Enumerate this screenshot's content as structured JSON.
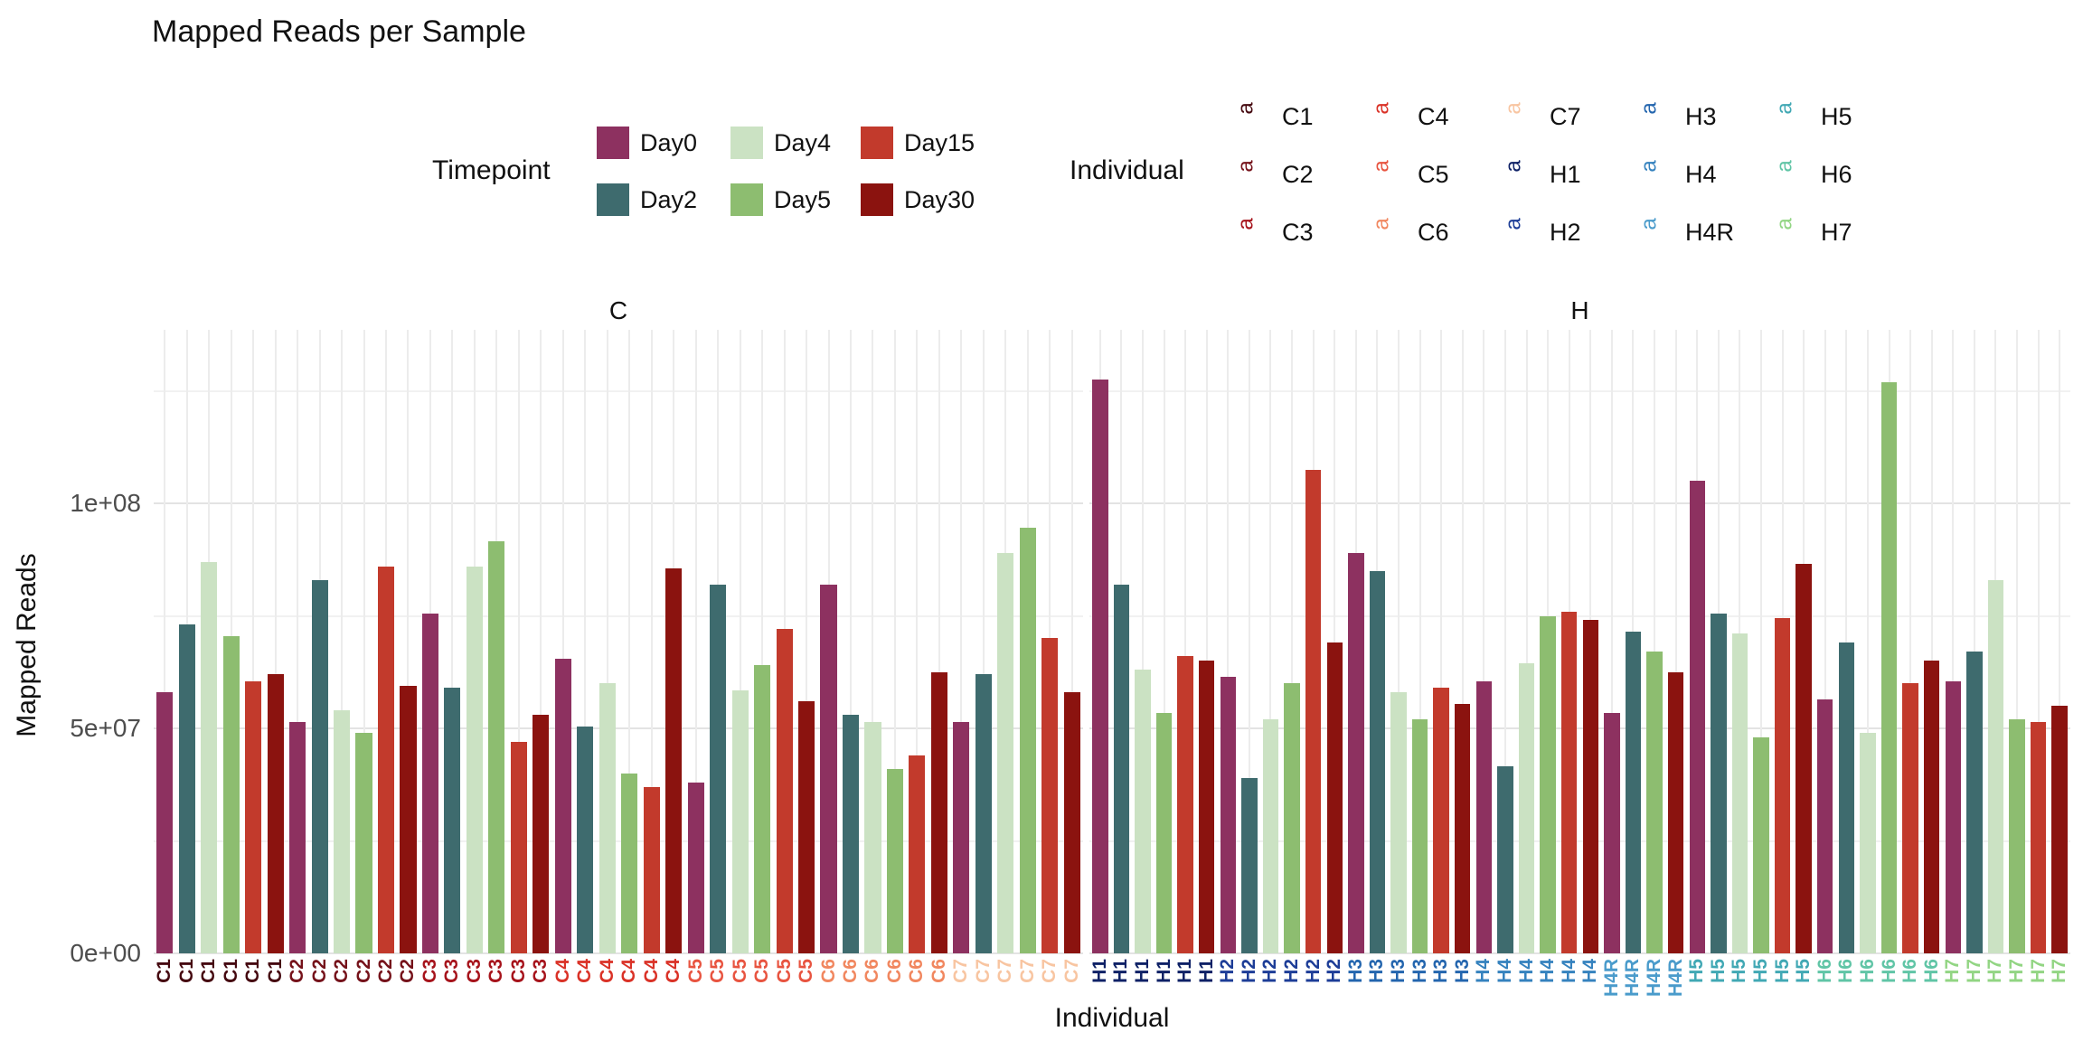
{
  "title": "Mapped Reads per Sample",
  "y_axis": {
    "label": "Mapped Reads",
    "ticks": [
      {
        "label": "0e+00",
        "value": 0
      },
      {
        "label": "5e+07",
        "value": 50000000
      },
      {
        "label": "1e+08",
        "value": 100000000
      }
    ]
  },
  "x_axis": {
    "label": "Individual"
  },
  "legend_timepoint": {
    "title": "Timepoint",
    "items": [
      {
        "label": "Day0",
        "color": "#8D3160"
      },
      {
        "label": "Day2",
        "color": "#3E6B6E"
      },
      {
        "label": "Day4",
        "color": "#CBE2C3"
      },
      {
        "label": "Day5",
        "color": "#8DBD70"
      },
      {
        "label": "Day15",
        "color": "#C23A2C"
      },
      {
        "label": "Day30",
        "color": "#8B130F"
      }
    ]
  },
  "legend_individual": {
    "title": "Individual",
    "items": [
      {
        "label": "C1",
        "color": "#450910"
      },
      {
        "label": "C2",
        "color": "#75121A"
      },
      {
        "label": "C3",
        "color": "#A6131B"
      },
      {
        "label": "C4",
        "color": "#DA3227"
      },
      {
        "label": "C5",
        "color": "#E85440"
      },
      {
        "label": "C6",
        "color": "#F1875F"
      },
      {
        "label": "C7",
        "color": "#F8C5A1"
      },
      {
        "label": "H1",
        "color": "#0E2166"
      },
      {
        "label": "H2",
        "color": "#1D3D97"
      },
      {
        "label": "H3",
        "color": "#2365AE"
      },
      {
        "label": "H4",
        "color": "#3582BE"
      },
      {
        "label": "H4R",
        "color": "#4A9BCB"
      },
      {
        "label": "H5",
        "color": "#41A8B4"
      },
      {
        "label": "H6",
        "color": "#60C5A6"
      },
      {
        "label": "H7",
        "color": "#92D583"
      }
    ]
  },
  "chart_data": {
    "type": "bar",
    "title": "Mapped Reads per Sample",
    "xlabel": "Individual",
    "ylabel": "Mapped Reads",
    "ylim": [
      0,
      135000000
    ],
    "yticks": [
      0,
      50000000,
      100000000
    ],
    "grid": "on",
    "legend_position": "top",
    "timepoint_order": [
      "Day0",
      "Day2",
      "Day4",
      "Day5",
      "Day15",
      "Day30"
    ],
    "facets": [
      {
        "name": "C",
        "groups": [
          {
            "individual": "C1",
            "samples": [
              {
                "timepoint": "Day0",
                "value": 58000000
              },
              {
                "timepoint": "Day2",
                "value": 73000000
              },
              {
                "timepoint": "Day4",
                "value": 87000000
              },
              {
                "timepoint": "Day5",
                "value": 70500000
              },
              {
                "timepoint": "Day15",
                "value": 60500000
              },
              {
                "timepoint": "Day30",
                "value": 62000000
              }
            ]
          },
          {
            "individual": "C2",
            "samples": [
              {
                "timepoint": "Day0",
                "value": 51500000
              },
              {
                "timepoint": "Day2",
                "value": 83000000
              },
              {
                "timepoint": "Day4",
                "value": 54000000
              },
              {
                "timepoint": "Day5",
                "value": 49000000
              },
              {
                "timepoint": "Day15",
                "value": 86000000
              },
              {
                "timepoint": "Day30",
                "value": 59500000
              }
            ]
          },
          {
            "individual": "C3",
            "samples": [
              {
                "timepoint": "Day0",
                "value": 75500000
              },
              {
                "timepoint": "Day2",
                "value": 59000000
              },
              {
                "timepoint": "Day4",
                "value": 86000000
              },
              {
                "timepoint": "Day5",
                "value": 91500000
              },
              {
                "timepoint": "Day15",
                "value": 47000000
              },
              {
                "timepoint": "Day30",
                "value": 53000000
              }
            ]
          },
          {
            "individual": "C4",
            "samples": [
              {
                "timepoint": "Day0",
                "value": 65500000
              },
              {
                "timepoint": "Day2",
                "value": 50500000
              },
              {
                "timepoint": "Day4",
                "value": 60000000
              },
              {
                "timepoint": "Day5",
                "value": 40000000
              },
              {
                "timepoint": "Day15",
                "value": 37000000
              },
              {
                "timepoint": "Day30",
                "value": 85500000
              }
            ]
          },
          {
            "individual": "C5",
            "samples": [
              {
                "timepoint": "Day0",
                "value": 38000000
              },
              {
                "timepoint": "Day2",
                "value": 82000000
              },
              {
                "timepoint": "Day4",
                "value": 58500000
              },
              {
                "timepoint": "Day5",
                "value": 64000000
              },
              {
                "timepoint": "Day15",
                "value": 72000000
              },
              {
                "timepoint": "Day30",
                "value": 56000000
              }
            ]
          },
          {
            "individual": "C6",
            "samples": [
              {
                "timepoint": "Day0",
                "value": 82000000
              },
              {
                "timepoint": "Day2",
                "value": 53000000
              },
              {
                "timepoint": "Day4",
                "value": 51500000
              },
              {
                "timepoint": "Day5",
                "value": 41000000
              },
              {
                "timepoint": "Day15",
                "value": 44000000
              },
              {
                "timepoint": "Day30",
                "value": 62500000
              }
            ]
          },
          {
            "individual": "C7",
            "samples": [
              {
                "timepoint": "Day0",
                "value": 51500000
              },
              {
                "timepoint": "Day2",
                "value": 62000000
              },
              {
                "timepoint": "Day4",
                "value": 89000000
              },
              {
                "timepoint": "Day5",
                "value": 94500000
              },
              {
                "timepoint": "Day15",
                "value": 70000000
              },
              {
                "timepoint": "Day30",
                "value": 58000000
              }
            ]
          }
        ]
      },
      {
        "name": "H",
        "groups": [
          {
            "individual": "H1",
            "samples": [
              {
                "timepoint": "Day0",
                "value": 127500000
              },
              {
                "timepoint": "Day2",
                "value": 82000000
              },
              {
                "timepoint": "Day4",
                "value": 63000000
              },
              {
                "timepoint": "Day5",
                "value": 53500000
              },
              {
                "timepoint": "Day15",
                "value": 66000000
              },
              {
                "timepoint": "Day30",
                "value": 65000000
              }
            ]
          },
          {
            "individual": "H2",
            "samples": [
              {
                "timepoint": "Day0",
                "value": 61500000
              },
              {
                "timepoint": "Day2",
                "value": 39000000
              },
              {
                "timepoint": "Day4",
                "value": 52000000
              },
              {
                "timepoint": "Day5",
                "value": 60000000
              },
              {
                "timepoint": "Day15",
                "value": 107500000
              },
              {
                "timepoint": "Day30",
                "value": 69000000
              }
            ]
          },
          {
            "individual": "H3",
            "samples": [
              {
                "timepoint": "Day0",
                "value": 89000000
              },
              {
                "timepoint": "Day2",
                "value": 85000000
              },
              {
                "timepoint": "Day4",
                "value": 58000000
              },
              {
                "timepoint": "Day5",
                "value": 52000000
              },
              {
                "timepoint": "Day15",
                "value": 59000000
              },
              {
                "timepoint": "Day30",
                "value": 55500000
              }
            ]
          },
          {
            "individual": "H4",
            "samples": [
              {
                "timepoint": "Day0",
                "value": 60500000
              },
              {
                "timepoint": "Day2",
                "value": 41500000
              },
              {
                "timepoint": "Day4",
                "value": 64500000
              },
              {
                "timepoint": "Day5",
                "value": 75000000
              },
              {
                "timepoint": "Day15",
                "value": 76000000
              },
              {
                "timepoint": "Day30",
                "value": 74000000
              }
            ]
          },
          {
            "individual": "H4R",
            "samples": [
              {
                "timepoint": "Day0",
                "value": 53500000
              },
              {
                "timepoint": "Day2",
                "value": 71500000
              },
              {
                "timepoint": "Day5",
                "value": 67000000
              },
              {
                "timepoint": "Day30",
                "value": 62500000
              }
            ]
          },
          {
            "individual": "H5",
            "samples": [
              {
                "timepoint": "Day0",
                "value": 105000000
              },
              {
                "timepoint": "Day2",
                "value": 75500000
              },
              {
                "timepoint": "Day4",
                "value": 71000000
              },
              {
                "timepoint": "Day5",
                "value": 48000000
              },
              {
                "timepoint": "Day15",
                "value": 74500000
              },
              {
                "timepoint": "Day30",
                "value": 86500000
              }
            ]
          },
          {
            "individual": "H6",
            "samples": [
              {
                "timepoint": "Day0",
                "value": 56500000
              },
              {
                "timepoint": "Day2",
                "value": 69000000
              },
              {
                "timepoint": "Day4",
                "value": 49000000
              },
              {
                "timepoint": "Day5",
                "value": 127000000
              },
              {
                "timepoint": "Day15",
                "value": 60000000
              },
              {
                "timepoint": "Day30",
                "value": 65000000
              }
            ]
          },
          {
            "individual": "H7",
            "samples": [
              {
                "timepoint": "Day0",
                "value": 60500000
              },
              {
                "timepoint": "Day2",
                "value": 67000000
              },
              {
                "timepoint": "Day4",
                "value": 83000000
              },
              {
                "timepoint": "Day5",
                "value": 52000000
              },
              {
                "timepoint": "Day15",
                "value": 51500000
              },
              {
                "timepoint": "Day30",
                "value": 55000000
              }
            ]
          }
        ]
      }
    ]
  }
}
